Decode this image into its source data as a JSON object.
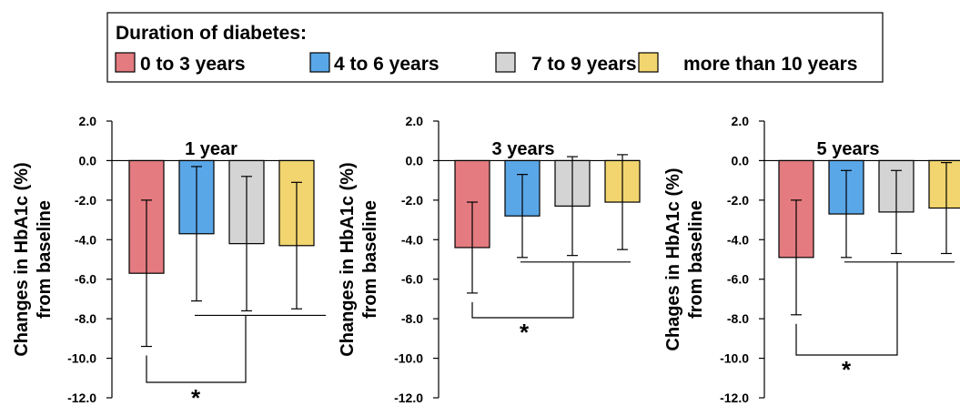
{
  "legend": {
    "title": "Duration of diabetes:",
    "entries": [
      {
        "label": "0 to 3 years",
        "color": "#e37b80"
      },
      {
        "label": "4 to 6 years",
        "color": "#5aa7e8"
      },
      {
        "label": "7 to 9 years",
        "color": "#d4d4d4"
      },
      {
        "label": "more than 10 years",
        "color": "#f2d56e"
      }
    ]
  },
  "significance_marker": "*",
  "chart_data": [
    {
      "type": "bar",
      "title": "1 year",
      "ylabel_lines": [
        "Changes in HbA1c (%)",
        "from baseline"
      ],
      "categories": [
        "0 to 3 years",
        "4 to 6 years",
        "7 to 9 years",
        "more than 10 years"
      ],
      "values": [
        -5.7,
        -3.7,
        -4.2,
        -4.3
      ],
      "error_bars": [
        3.7,
        3.4,
        3.4,
        3.2
      ],
      "ylim": [
        -12.0,
        2.0
      ],
      "yticks": [
        "2.0",
        "0.0",
        "-2.0",
        "-4.0",
        "-6.0",
        "-8.0",
        "-10.0",
        "-12.0"
      ],
      "significance": {
        "label": "*",
        "groups": "0 to 3 years vs 4 years and more"
      }
    },
    {
      "type": "bar",
      "title": "3 years",
      "ylabel_lines": [
        "Changes in HbA1c (%)",
        "from baseline"
      ],
      "categories": [
        "0 to 3 years",
        "4 to 6 years",
        "7 to 9 years",
        "more than 10 years"
      ],
      "values": [
        -4.4,
        -2.8,
        -2.3,
        -2.1
      ],
      "error_bars": [
        2.3,
        2.1,
        2.5,
        2.4
      ],
      "ylim": [
        -12.0,
        2.0
      ],
      "yticks": [
        "2.0",
        "0.0",
        "-2.0",
        "-4.0",
        "-6.0",
        "-8.0",
        "-10.0",
        "-12.0"
      ],
      "significance": {
        "label": "*",
        "groups": "0 to 3 years vs 4 years and more"
      }
    },
    {
      "type": "bar",
      "title": "5 years",
      "ylabel_lines": [
        "Chages in HbA1c (%)",
        "from baseline"
      ],
      "categories": [
        "0 to 3 years",
        "4 to 6 years",
        "7 to 9 years",
        "more than 10 years"
      ],
      "values": [
        -4.9,
        -2.7,
        -2.6,
        -2.4
      ],
      "error_bars": [
        2.9,
        2.2,
        2.1,
        2.3
      ],
      "ylim": [
        -12.0,
        2.0
      ],
      "yticks": [
        "2.0",
        "0.0",
        "-2.0",
        "-4.0",
        "-6.0",
        "-8.0",
        "-10.0",
        "-12.0"
      ],
      "significance": {
        "label": "*",
        "groups": "0 to 3 years vs 4 years and more"
      }
    }
  ]
}
